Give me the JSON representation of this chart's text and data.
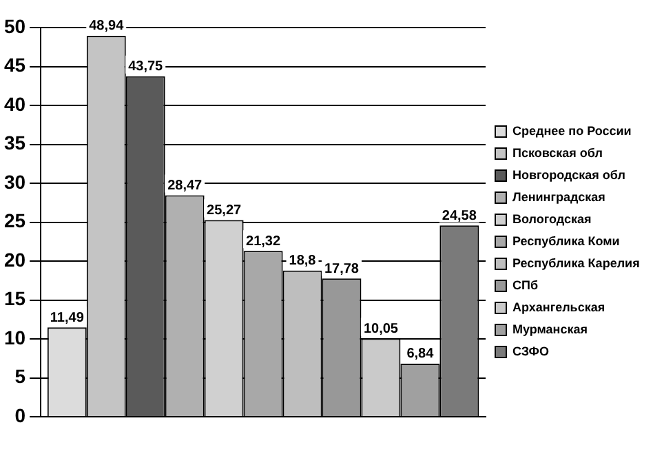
{
  "chart_data": {
    "type": "bar",
    "categories": [
      null
    ],
    "series": [
      {
        "name": "Среднее по России",
        "color": "#dcdcdc",
        "values": [
          11.49
        ],
        "value_labels": [
          "11,49"
        ]
      },
      {
        "name": "Псковская обл",
        "color": "#c4c4c4",
        "values": [
          48.94
        ],
        "value_labels": [
          "48,94"
        ]
      },
      {
        "name": "Новгородская обл",
        "color": "#5a5a5a",
        "values": [
          43.75
        ],
        "value_labels": [
          "43,75"
        ]
      },
      {
        "name": "Ленинградская",
        "color": "#b0b0b0",
        "values": [
          28.47
        ],
        "value_labels": [
          "28,47"
        ]
      },
      {
        "name": "Вологодская",
        "color": "#d0d0d0",
        "values": [
          25.27
        ],
        "value_labels": [
          "25,27"
        ]
      },
      {
        "name": "Республика Коми",
        "color": "#a8a8a8",
        "values": [
          21.32
        ],
        "value_labels": [
          "21,32"
        ]
      },
      {
        "name": "Республика Карелия",
        "color": "#bebebe",
        "values": [
          18.8
        ],
        "value_labels": [
          "18,8"
        ]
      },
      {
        "name": "СПб",
        "color": "#989898",
        "values": [
          17.78
        ],
        "value_labels": [
          "17,78"
        ]
      },
      {
        "name": "Архангельская",
        "color": "#cacaca",
        "values": [
          10.05
        ],
        "value_labels": [
          "10,05"
        ]
      },
      {
        "name": "Мурманская",
        "color": "#a0a0a0",
        "values": [
          6.84
        ],
        "value_labels": [
          "6,84"
        ]
      },
      {
        "name": "СЗФО",
        "color": "#7a7a7a",
        "values": [
          24.58
        ],
        "value_labels": [
          "24,58"
        ]
      }
    ],
    "ylim": [
      0,
      50
    ],
    "yticks": [
      0,
      5,
      10,
      15,
      20,
      25,
      30,
      35,
      40,
      45,
      50
    ],
    "grid": "y",
    "legend": "right"
  }
}
